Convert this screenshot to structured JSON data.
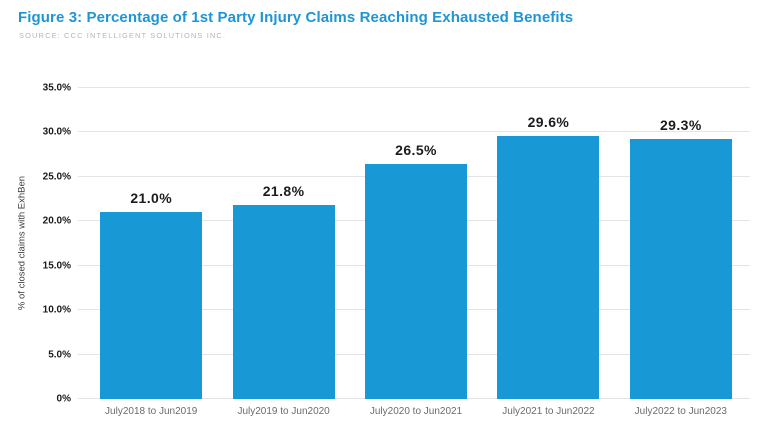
{
  "header": {
    "title": "Figure 3: Percentage of 1st Party Injury Claims Reaching Exhausted Benefits",
    "source": "SOURCE: CCC INTELLIGENT SOLUTIONS INC."
  },
  "colors": {
    "bar": "#1899d6",
    "title": "#1e95d5",
    "gridline": "#e4e4e4",
    "y_tick_label": "#1a1a1a",
    "x_tick_label": "#6b6b6b",
    "value_label": "#1c1c1c",
    "source_text": "#b6b6b6"
  },
  "chart_data": {
    "type": "bar",
    "title": "Figure 3: Percentage of 1st Party Injury Claims Reaching Exhausted Benefits",
    "source": "SOURCE: CCC INTELLIGENT SOLUTIONS INC.",
    "categories": [
      "July2018 to Jun2019",
      "July2019 to Jun2020",
      "July2020 to Jun2021",
      "July2021 to Jun2022",
      "July2022 to Jun2023"
    ],
    "values": [
      21.0,
      21.8,
      26.5,
      29.6,
      29.3
    ],
    "value_labels": [
      "21.0%",
      "21.8%",
      "26.5%",
      "29.6%",
      "29.3%"
    ],
    "xlabel": "",
    "ylabel": "% of closed claims with ExhBen",
    "ylim": [
      0,
      35
    ],
    "ytick_step": 5,
    "ytick_labels": [
      "0%",
      "5.0%",
      "10.0%",
      "15.0%",
      "20.0%",
      "25.0%",
      "30.0%",
      "35.0%"
    ],
    "grid": true,
    "legend": false
  }
}
